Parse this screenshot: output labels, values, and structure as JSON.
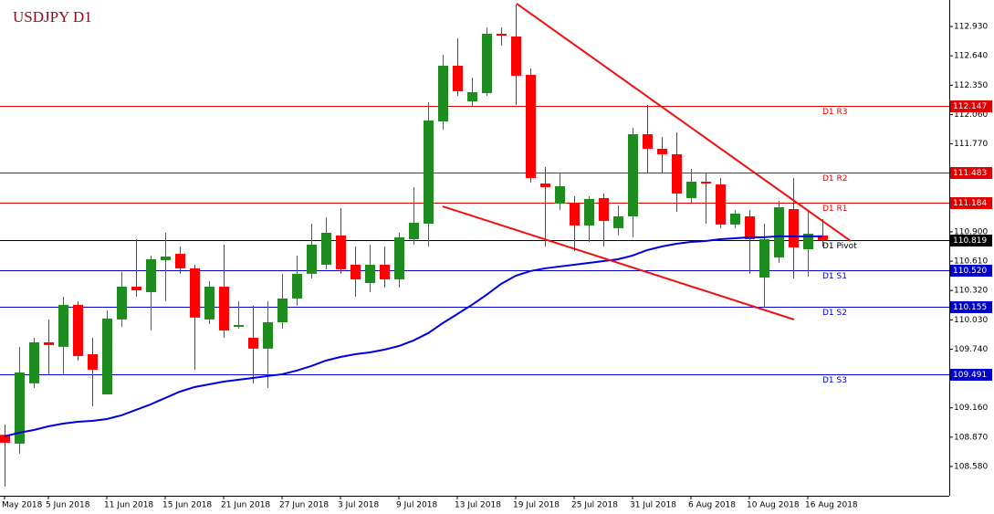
{
  "chart_data": {
    "type": "candlestick",
    "title": "USDJPY D1",
    "categories": [
      "May 2018",
      null,
      null,
      "5 Jun 2018",
      null,
      null,
      null,
      "11 Jun 2018",
      null,
      null,
      null,
      "15 Jun 2018",
      null,
      null,
      null,
      "21 Jun 2018",
      null,
      null,
      null,
      "27 Jun 2018",
      null,
      null,
      null,
      "3 Jul 2018",
      null,
      null,
      null,
      "9 Jul 2018",
      null,
      null,
      null,
      "13 Jul 2018",
      null,
      null,
      null,
      "19 Jul 2018",
      null,
      null,
      null,
      "25 Jul 2018",
      null,
      null,
      null,
      "31 Jul 2018",
      null,
      null,
      null,
      "6 Aug 2018",
      null,
      null,
      null,
      "10 Aug 2018",
      null,
      null,
      null,
      "16 Aug 2018",
      null
    ],
    "open": [
      108.893,
      108.806,
      109.402,
      109.808,
      109.763,
      110.178,
      109.69,
      109.293,
      110.034,
      110.358,
      110.304,
      110.62,
      110.683,
      110.539,
      110.034,
      110.358,
      109.961,
      109.853,
      109.745,
      110.006,
      110.241,
      110.485,
      110.575,
      110.864,
      110.575,
      110.394,
      110.575,
      110.43,
      110.827,
      110.981,
      111.992,
      112.542,
      112.19,
      112.271,
      112.858,
      112.831,
      112.452,
      111.378,
      111.179,
      111.188,
      110.963,
      111.234,
      110.936,
      111.053,
      111.865,
      111.721,
      111.667,
      111.234,
      111.396,
      111.369,
      110.972,
      111.053,
      110.448,
      110.647,
      111.125,
      110.728,
      110.864
    ],
    "high": [
      108.995,
      109.763,
      109.853,
      110.034,
      110.259,
      110.214,
      109.853,
      110.124,
      110.503,
      110.827,
      110.665,
      110.891,
      110.755,
      110.575,
      110.412,
      110.773,
      110.214,
      110.169,
      110.214,
      110.485,
      110.665,
      110.981,
      111.044,
      111.134,
      110.755,
      110.773,
      110.755,
      110.891,
      111.342,
      112.181,
      112.651,
      112.813,
      112.425,
      112.921,
      112.921,
      113.147,
      112.515,
      111.54,
      111.477,
      111.252,
      111.252,
      111.279,
      111.161,
      111.929,
      112.154,
      111.838,
      111.883,
      111.522,
      111.477,
      111.432,
      111.116,
      111.116,
      110.981,
      111.207,
      111.432,
      111.098,
      111.026
    ],
    "low": [
      108.382,
      108.707,
      109.356,
      109.492,
      109.492,
      109.627,
      109.175,
      109.293,
      109.961,
      110.259,
      109.925,
      110.214,
      110.485,
      109.537,
      109.988,
      109.853,
      109.943,
      109.402,
      109.356,
      109.943,
      110.169,
      110.439,
      110.53,
      110.485,
      110.259,
      110.304,
      110.349,
      110.349,
      110.773,
      110.755,
      111.91,
      112.244,
      112.145,
      112.244,
      112.741,
      112.154,
      111.387,
      110.755,
      111.116,
      110.71,
      110.8,
      110.755,
      110.864,
      110.846,
      111.477,
      111.477,
      111.098,
      111.188,
      110.981,
      110.936,
      110.936,
      110.485,
      110.151,
      110.593,
      110.439,
      110.457,
      110.755
    ],
    "close": [
      108.815,
      109.51,
      109.808,
      109.781,
      110.178,
      109.672,
      109.537,
      110.043,
      110.358,
      110.322,
      110.629,
      110.656,
      110.539,
      110.052,
      110.358,
      109.925,
      109.979,
      109.745,
      110.006,
      110.241,
      110.485,
      110.773,
      110.891,
      110.53,
      110.43,
      110.575,
      110.43,
      110.846,
      110.99,
      112.001,
      112.542,
      112.29,
      112.281,
      112.858,
      112.84,
      112.443,
      111.432,
      111.342,
      111.351,
      110.963,
      111.225,
      111.008,
      111.053,
      111.865,
      111.721,
      111.667,
      111.279,
      111.396,
      111.378,
      110.972,
      111.08,
      110.827,
      110.827,
      111.143,
      110.746,
      110.882,
      110.819
    ],
    "up_color": "#1e8c1e",
    "down_color": "#ff0000",
    "moving_average": {
      "color": "#0000dd",
      "values": [
        108.878,
        108.914,
        108.941,
        108.977,
        109.004,
        109.022,
        109.031,
        109.049,
        109.086,
        109.14,
        109.194,
        109.257,
        109.32,
        109.365,
        109.392,
        109.419,
        109.437,
        109.455,
        109.474,
        109.492,
        109.528,
        109.573,
        109.627,
        109.663,
        109.69,
        109.708,
        109.735,
        109.771,
        109.826,
        109.898,
        109.997,
        110.087,
        110.178,
        110.277,
        110.385,
        110.466,
        110.512,
        110.539,
        110.557,
        110.575,
        110.593,
        110.611,
        110.629,
        110.665,
        110.719,
        110.755,
        110.782,
        110.8,
        110.809,
        110.827,
        110.836,
        110.846,
        110.846,
        110.856,
        110.856,
        110.856,
        110.856
      ]
    },
    "levels": [
      {
        "name": "D1 R3",
        "value": 112.147,
        "color": "#e00000"
      },
      {
        "name": "D1 R2",
        "value": 111.483,
        "color": "#e00000"
      },
      {
        "name": "D1 R1",
        "value": 111.184,
        "color": "#e00000"
      },
      {
        "name": "D1 Pivot",
        "value": 110.819,
        "color": "#000000"
      },
      {
        "name": "D1 S1",
        "value": 110.52,
        "label": "110.520",
        "color": "#0000cd"
      },
      {
        "name": "D1 S2",
        "value": 110.155,
        "color": "#0000cd"
      },
      {
        "name": "D1 S3",
        "value": 109.491,
        "color": "#0000cd"
      }
    ],
    "trendlines": [
      {
        "color": "#ee1111",
        "start": [
          35.06,
          113.156
        ],
        "end": [
          57.94,
          110.809
        ]
      },
      {
        "color": "#ee1111",
        "start": [
          30.0,
          111.152
        ],
        "end": [
          54.06,
          110.033
        ]
      }
    ],
    "ylim": [
      108.291,
      113.192
    ],
    "yticks": [
      {
        "value": 108.58,
        "label": "108.580"
      },
      {
        "value": 108.87,
        "label": "108.870"
      },
      {
        "value": 109.16,
        "label": "109.160"
      },
      {
        "value": 109.45,
        "label": "109.450"
      },
      {
        "value": 109.74,
        "label": "109.740"
      },
      {
        "value": 110.03,
        "label": "110.030"
      },
      {
        "value": 110.32,
        "label": "110.320"
      },
      {
        "value": 110.61,
        "label": "110.610"
      },
      {
        "value": 110.9,
        "label": "110.900"
      },
      {
        "value": 111.19,
        "label": "111.190"
      },
      {
        "value": 111.48,
        "label": "111.480"
      },
      {
        "value": 111.77,
        "label": "111.770"
      },
      {
        "value": 112.06,
        "label": "112.060"
      },
      {
        "value": 112.35,
        "label": "112.350"
      },
      {
        "value": 112.64,
        "label": "112.640"
      },
      {
        "value": 112.93,
        "label": "112.930"
      }
    ]
  }
}
